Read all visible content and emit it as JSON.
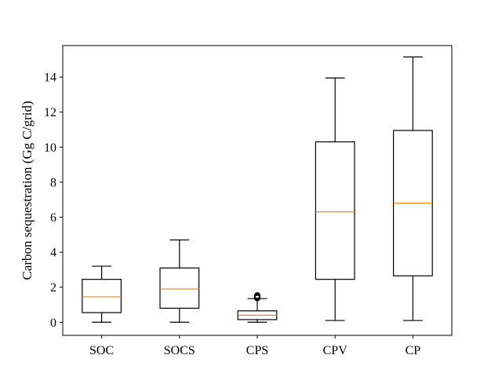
{
  "chart_data": {
    "type": "box",
    "title": "",
    "xlabel": "",
    "ylabel": "Carbon sequestration (Gg C/grid)",
    "ylim": [
      -0.75,
      15.8
    ],
    "yticks": [
      0,
      2,
      4,
      6,
      8,
      10,
      12,
      14
    ],
    "categories": [
      "SOC",
      "SOCS",
      "CPS",
      "CPV",
      "CP"
    ],
    "boxes": [
      {
        "label": "SOC",
        "whislo": 0.0,
        "q1": 0.55,
        "med": 1.45,
        "q3": 2.45,
        "whishi": 3.2,
        "fliers": []
      },
      {
        "label": "SOCS",
        "whislo": 0.0,
        "q1": 0.8,
        "med": 1.9,
        "q3": 3.1,
        "whishi": 4.7,
        "fliers": []
      },
      {
        "label": "CPS",
        "whislo": 0.0,
        "q1": 0.15,
        "med": 0.4,
        "q3": 0.65,
        "whishi": 1.35,
        "fliers": [
          1.38,
          1.41,
          1.44,
          1.47,
          1.5,
          1.53
        ]
      },
      {
        "label": "CPV",
        "whislo": 0.1,
        "q1": 2.45,
        "med": 6.3,
        "q3": 10.3,
        "whishi": 13.95,
        "fliers": []
      },
      {
        "label": "CP",
        "whislo": 0.1,
        "q1": 2.65,
        "med": 6.8,
        "q3": 10.95,
        "whishi": 15.15,
        "fliers": []
      }
    ],
    "colors": {
      "box": "#000000",
      "median": "#ff7f0e",
      "whisker": "#000000"
    },
    "grid": false
  }
}
